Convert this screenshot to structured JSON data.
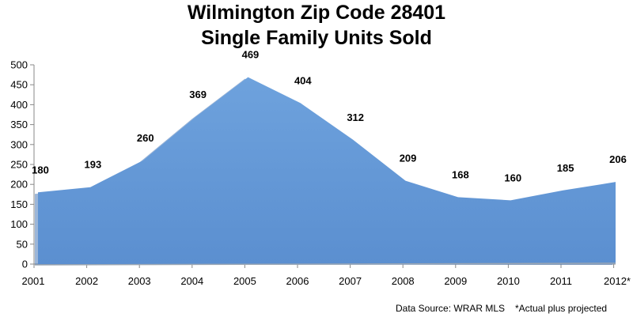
{
  "chart_data": {
    "type": "area",
    "title_lines": [
      "Wilmington Zip Code 28401",
      "Single Family Units Sold"
    ],
    "categories": [
      "2001",
      "2002",
      "2003",
      "2004",
      "2005",
      "2006",
      "2007",
      "2008",
      "2009",
      "2010",
      "2011",
      "2012*"
    ],
    "values": [
      180,
      193,
      260,
      369,
      469,
      404,
      312,
      209,
      168,
      160,
      185,
      206
    ],
    "data_labels": [
      "180",
      "193",
      "260",
      "369",
      "469",
      "404",
      "312",
      "209",
      "168",
      "160",
      "185",
      "206"
    ],
    "ylim": [
      0,
      500
    ],
    "y_ticks": [
      0,
      50,
      100,
      150,
      200,
      250,
      300,
      350,
      400,
      450,
      500
    ],
    "grid": false,
    "legend": "none",
    "xlabel": "",
    "ylabel": "",
    "colors": {
      "area_fill": "#5b8fd0",
      "area_fill_light": "#6ea2dd",
      "area_edge": "#4a7ab8",
      "axis": "#888888"
    },
    "footnotes": [
      "Data Source: WRAR MLS",
      "*Actual plus projected"
    ]
  }
}
